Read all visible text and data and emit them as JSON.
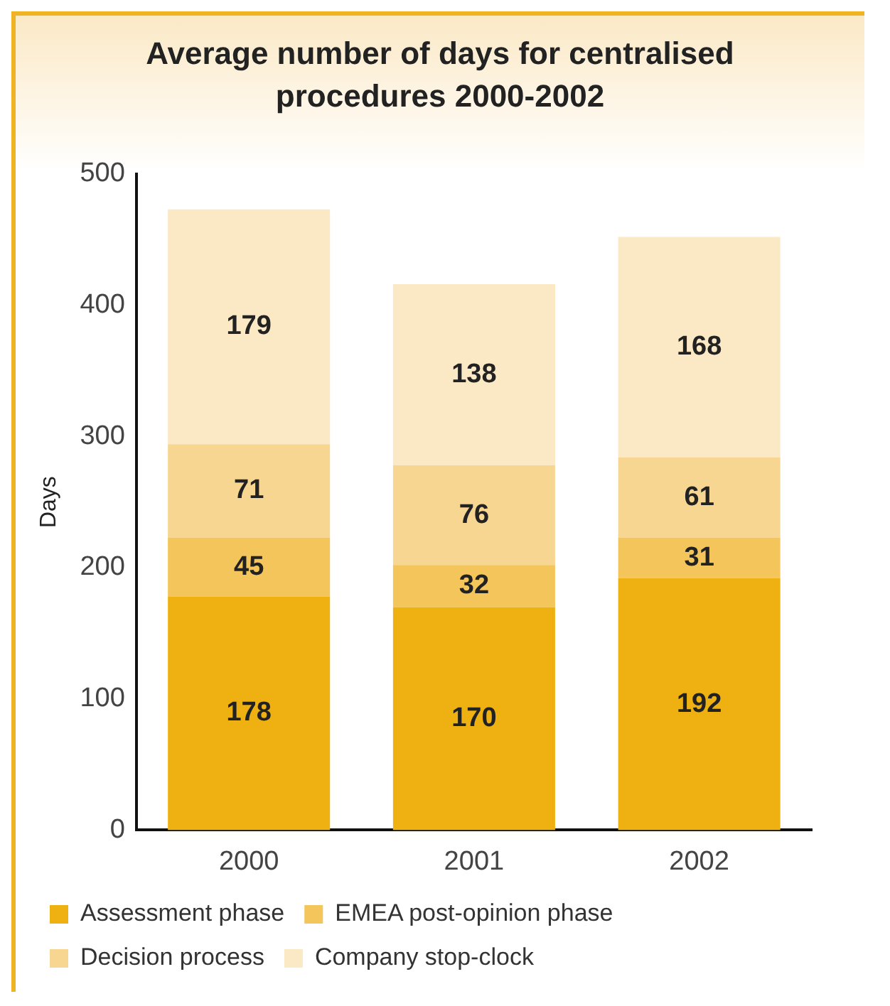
{
  "chart_data": {
    "type": "bar",
    "title": "Average number of days for centralised procedures 2000-2002",
    "ylabel": "Days",
    "categories": [
      "2000",
      "2001",
      "2002"
    ],
    "series": [
      {
        "name": "Assessment phase",
        "color": "#eeb111",
        "values": [
          178,
          170,
          192
        ]
      },
      {
        "name": "EMEA post-opinion phase",
        "color": "#f3c55a",
        "values": [
          45,
          32,
          31
        ]
      },
      {
        "name": "Decision process",
        "color": "#f7d692",
        "values": [
          71,
          76,
          61
        ]
      },
      {
        "name": "Company stop-clock",
        "color": "#fbe8c4",
        "values": [
          179,
          138,
          168
        ]
      }
    ],
    "stacked": true,
    "ylim": [
      0,
      500
    ],
    "yticks": [
      0,
      100,
      200,
      300,
      400,
      500
    ],
    "grid": false,
    "legend": "bottom",
    "data_labels": true
  }
}
